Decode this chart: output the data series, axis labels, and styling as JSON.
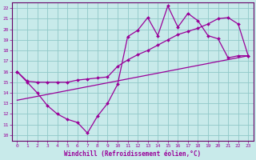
{
  "xlabel": "Windchill (Refroidissement éolien,°C)",
  "bg_color": "#c8eaea",
  "grid_color": "#90c8c8",
  "line_color": "#990099",
  "spine_color": "#660066",
  "xlim": [
    -0.5,
    23.5
  ],
  "ylim": [
    9.5,
    22.5
  ],
  "xticks": [
    0,
    1,
    2,
    3,
    4,
    5,
    6,
    7,
    8,
    9,
    10,
    11,
    12,
    13,
    14,
    15,
    16,
    17,
    18,
    19,
    20,
    21,
    22,
    23
  ],
  "yticks": [
    10,
    11,
    12,
    13,
    14,
    15,
    16,
    17,
    18,
    19,
    20,
    21,
    22
  ],
  "line1_x": [
    0,
    1,
    2,
    3,
    4,
    5,
    6,
    7,
    8,
    9,
    10,
    11,
    12,
    13,
    14,
    15,
    16,
    17,
    18,
    19,
    20,
    21,
    22,
    23
  ],
  "line1_y": [
    16,
    15,
    14,
    12.8,
    12,
    11.5,
    11.2,
    10.2,
    11.8,
    13.0,
    14.8,
    19.3,
    19.9,
    21.1,
    19.4,
    22.2,
    20.2,
    21.5,
    20.8,
    19.4,
    19.1,
    17.3,
    17.5,
    17.5
  ],
  "line2_x": [
    0,
    1,
    2,
    3,
    4,
    5,
    6,
    7,
    8,
    9,
    10,
    11,
    12,
    13,
    14,
    15,
    16,
    17,
    18,
    19,
    20,
    21,
    22,
    23
  ],
  "line2_y": [
    16,
    15.1,
    15.0,
    15.0,
    15.0,
    15.0,
    15.2,
    15.3,
    15.4,
    15.5,
    16.5,
    17.1,
    17.6,
    18.0,
    18.5,
    19.0,
    19.5,
    19.8,
    20.1,
    20.5,
    21.0,
    21.1,
    20.5,
    17.5
  ],
  "line3_x": [
    0,
    23
  ],
  "line3_y": [
    13.3,
    17.5
  ]
}
